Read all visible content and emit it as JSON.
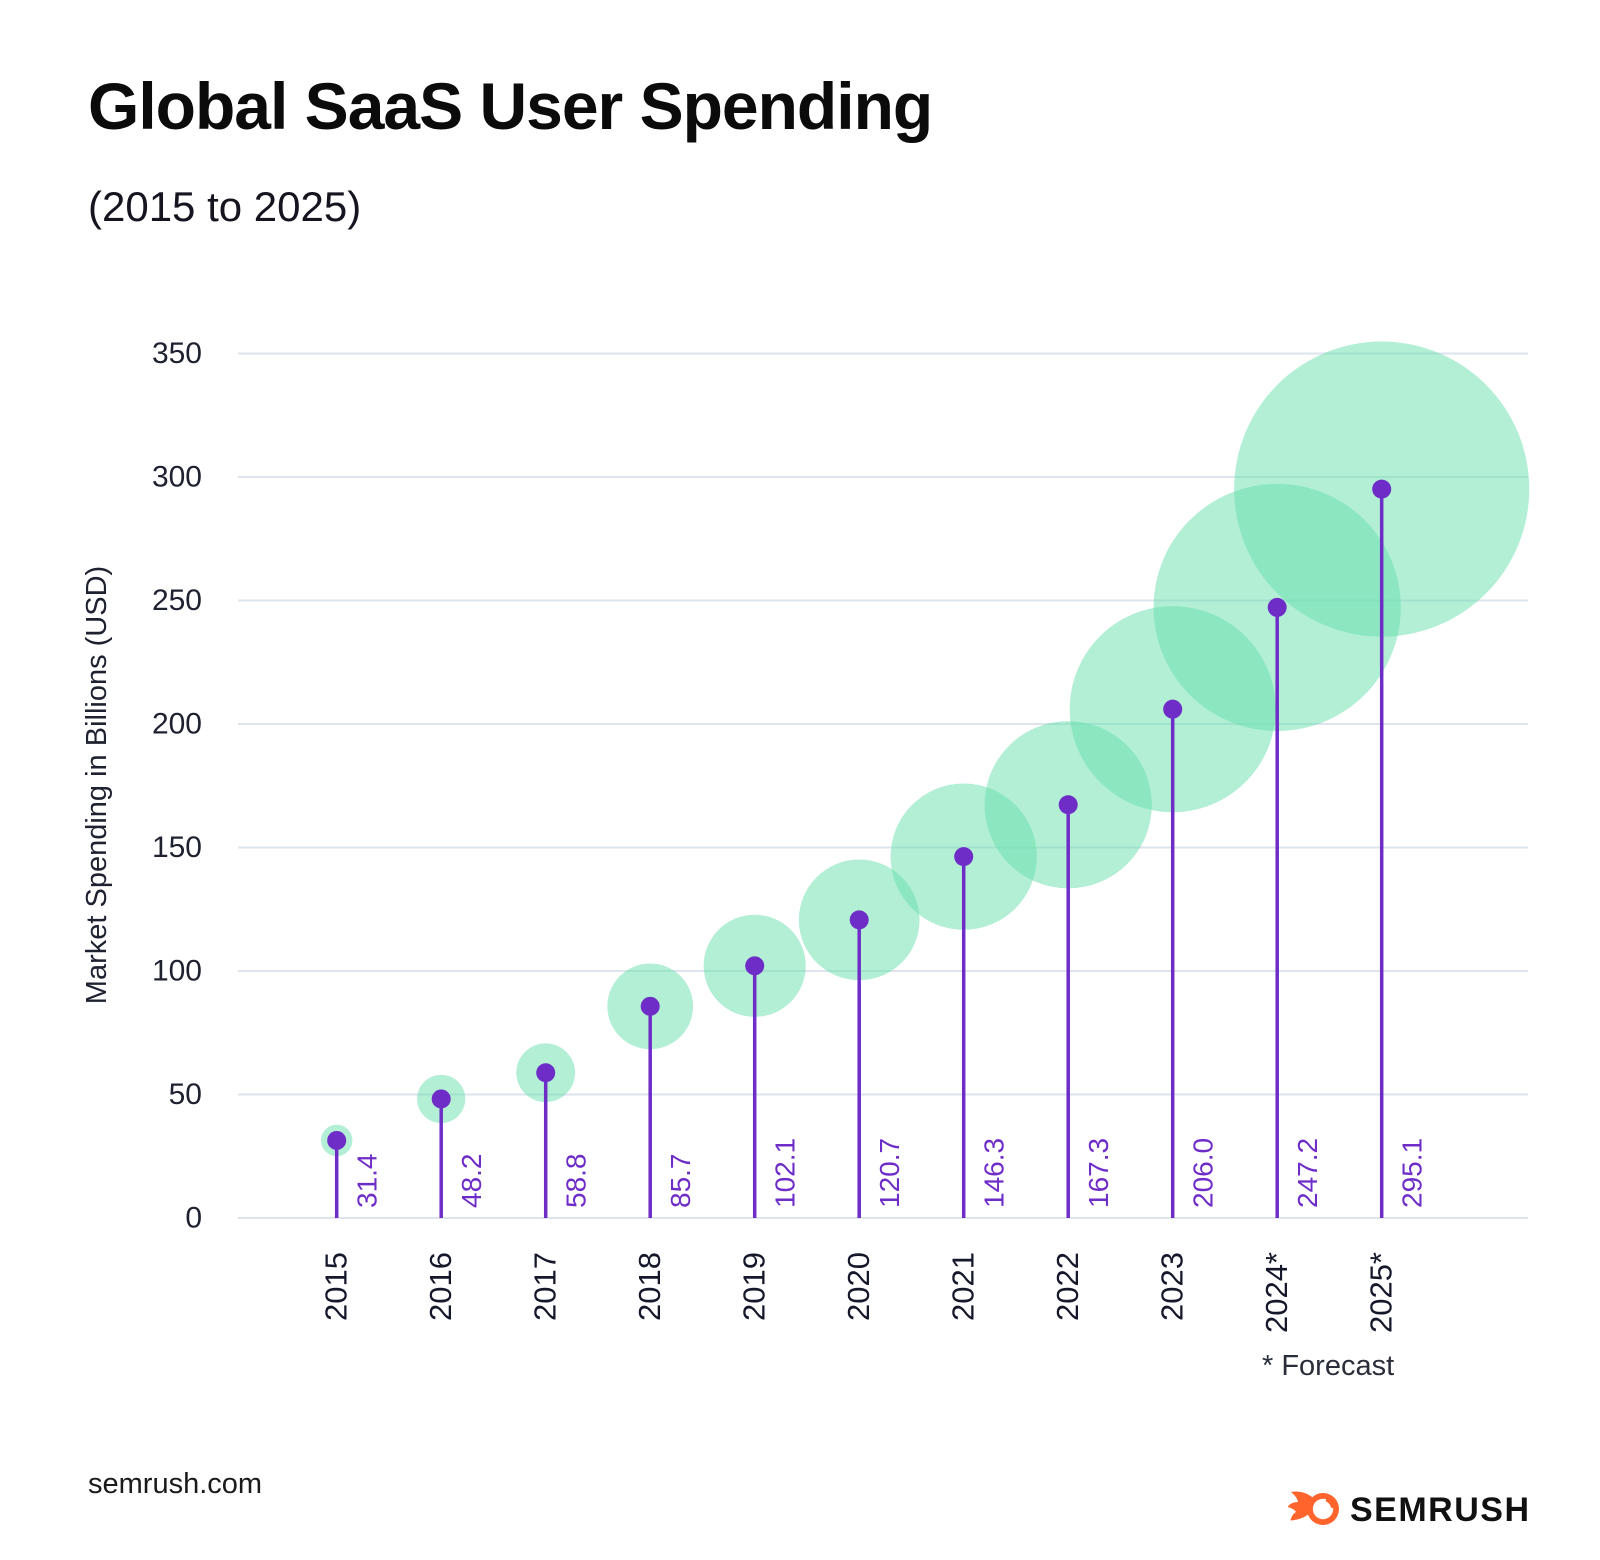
{
  "title": "Global SaaS User Spending",
  "subtitle": "(2015 to 2025)",
  "forecast_note": "* Forecast",
  "footer": {
    "site": "semrush.com",
    "brand": "SEMRUSH"
  },
  "colors": {
    "accent_purple": "#6F2DC8",
    "bubble_green": "rgba(101, 223, 171, 0.5)",
    "gridline": "#DDE4EE",
    "axis_text": "#1E2130",
    "year_text": "#15182B",
    "logo_orange": "#FF642D"
  },
  "chart_data": {
    "type": "scatter",
    "variant": "lollipop-bubble",
    "title": "Global SaaS User Spending (2015 to 2025)",
    "categories": [
      "2015",
      "2016",
      "2017",
      "2018",
      "2019",
      "2020",
      "2021",
      "2022",
      "2023",
      "2024*",
      "2025*"
    ],
    "values": [
      31.4,
      48.2,
      58.8,
      85.7,
      102.1,
      120.7,
      146.3,
      167.3,
      206.0,
      247.2,
      295.1
    ],
    "value_labels": [
      "31.4",
      "48.2",
      "58.8",
      "85.7",
      "102.1",
      "120.7",
      "146.3",
      "167.3",
      "206.0",
      "247.2",
      "295.1"
    ],
    "xlabel": "",
    "ylabel": "Market Spending in Billions (USD)",
    "ylim": [
      0,
      350
    ],
    "yticks": [
      0,
      50,
      100,
      150,
      200,
      250,
      300,
      350
    ],
    "grid": "horizontal",
    "legend": false,
    "annotations": [
      "* Forecast"
    ]
  }
}
